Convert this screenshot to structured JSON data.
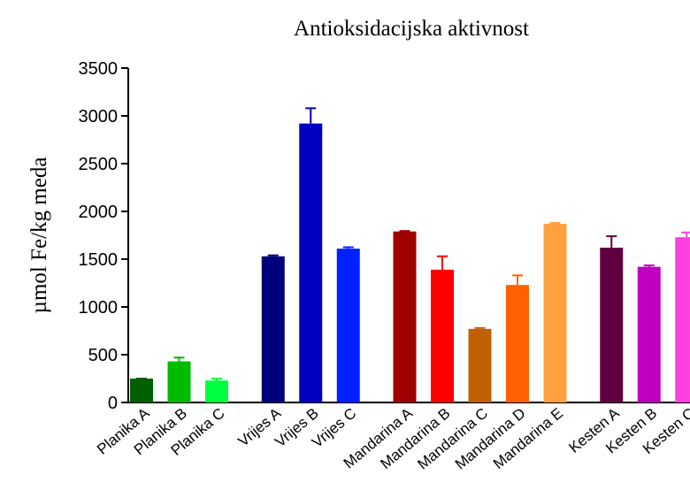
{
  "chart_data": {
    "type": "bar",
    "title": "Antioksidacijska aktivnost",
    "y_label": "µmol Fe/kg meda",
    "categories": [
      "Planika A",
      "Planika B",
      "Planika C",
      null,
      "Vrijes A",
      "Vrijes B",
      "Vrijes C",
      null,
      "Mandarina A",
      "Mandarina B",
      "Mandarina C",
      "Mandarina D",
      "Mandarina E",
      null,
      "Kesten A",
      "Kesten B",
      "Kesten C"
    ],
    "values": [
      250,
      430,
      230,
      null,
      1530,
      2920,
      1610,
      null,
      1790,
      1390,
      770,
      1230,
      1870,
      null,
      1620,
      1420,
      1730
    ],
    "errors": [
      0,
      40,
      20,
      null,
      10,
      160,
      15,
      null,
      5,
      140,
      10,
      100,
      10,
      null,
      120,
      15,
      50
    ],
    "colors": [
      "#006000",
      "#00bb00",
      "#00ff40",
      null,
      "#00007a",
      "#0000c0",
      "#0020ff",
      null,
      "#a00000",
      "#ff0000",
      "#c06000",
      "#ff6000",
      "#ffa040",
      null,
      "#600040",
      "#c000c0",
      "#ff40e0"
    ],
    "ylim": [
      0,
      3500
    ],
    "yticks": [
      0,
      500,
      1000,
      1500,
      2000,
      2500,
      3000,
      3500
    ]
  }
}
